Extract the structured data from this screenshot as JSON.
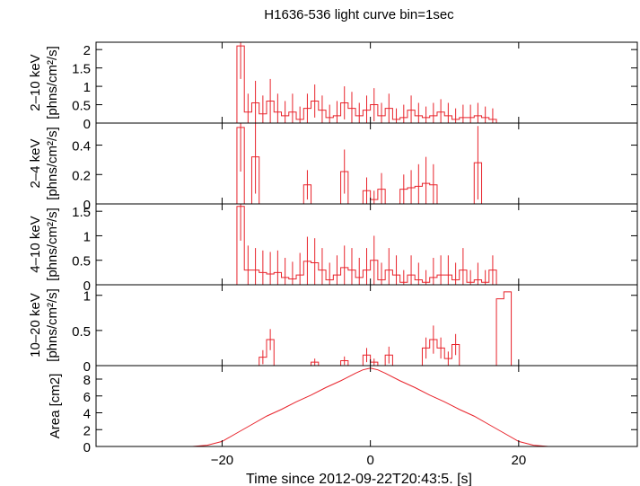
{
  "title": "H1636-536 light curve bin=1sec",
  "xlabel": "Time since 2012-09-22T20:43:5. [s]",
  "colors": {
    "data": "#e8232b",
    "axis": "#000000",
    "background": "#ffffff"
  },
  "chart_data": [
    {
      "type": "line",
      "ylabel_lines": [
        "2–10 keV",
        "[phns/cm²/s]"
      ],
      "xlim": [
        -37,
        36
      ],
      "ylim": [
        0,
        2.2
      ],
      "yticks": [
        0,
        0.5,
        1,
        1.5,
        2
      ],
      "ytick_labels": [
        "0",
        "0.5",
        "1",
        "1.5",
        "2"
      ],
      "x": [
        -18,
        -17,
        -16,
        -15,
        -14,
        -13,
        -12,
        -11,
        -10,
        -9,
        -8,
        -7,
        -6,
        -5,
        -4,
        -3,
        -2,
        -1,
        0,
        1,
        2,
        3,
        4,
        5,
        6,
        7,
        8,
        9,
        10,
        11,
        12,
        13,
        14,
        15,
        16
      ],
      "y": [
        2.1,
        0.3,
        0.55,
        0.25,
        0.6,
        0.3,
        0.2,
        0.3,
        0.1,
        0.4,
        0.6,
        0.35,
        0.15,
        0.2,
        0.55,
        0.4,
        0.2,
        0.35,
        0.5,
        0.2,
        0.4,
        0.1,
        0.15,
        0.35,
        0.2,
        0.15,
        0.2,
        0.3,
        0.2,
        0.1,
        0.15,
        0.15,
        0.2,
        0.15,
        0.1
      ],
      "err": [
        0.9,
        0.5,
        0.6,
        0.5,
        0.6,
        0.5,
        0.4,
        0.5,
        0.35,
        0.4,
        0.45,
        0.4,
        0.35,
        0.4,
        0.45,
        0.45,
        0.35,
        0.4,
        0.45,
        0.35,
        0.4,
        0.3,
        0.35,
        0.4,
        0.35,
        0.3,
        0.35,
        0.35,
        0.35,
        0.3,
        0.35,
        0.35,
        0.35,
        0.3,
        0.3
      ]
    },
    {
      "type": "line",
      "ylabel_lines": [
        "2–4 keV",
        "[phns/cm²/s]"
      ],
      "xlim": [
        -37,
        36
      ],
      "ylim": [
        0,
        0.55
      ],
      "yticks": [
        0,
        0.2,
        0.4
      ],
      "ytick_labels": [
        "0",
        "0.2",
        "0.4"
      ],
      "x": [
        -18,
        -17,
        -16,
        -15,
        -9,
        -4,
        -1,
        0,
        1,
        4,
        5,
        6,
        7,
        8,
        14
      ],
      "y": [
        0.52,
        0.0,
        0.32,
        0.0,
        0.13,
        0.22,
        0.09,
        0.03,
        0.1,
        0.1,
        0.11,
        0.12,
        0.14,
        0.13,
        0.28
      ],
      "err": [
        0.3,
        0.0,
        0.25,
        0.0,
        0.1,
        0.15,
        0.09,
        0.06,
        0.11,
        0.1,
        0.12,
        0.15,
        0.18,
        0.14,
        0.25
      ]
    },
    {
      "type": "line",
      "ylabel_lines": [
        "4–10 keV",
        "[phns/cm²/s]"
      ],
      "xlim": [
        -37,
        36
      ],
      "ylim": [
        0,
        1.65
      ],
      "yticks": [
        0,
        0.5,
        1,
        1.5
      ],
      "ytick_labels": [
        "0",
        "0.5",
        "1",
        "1.5"
      ],
      "x": [
        -18,
        -17,
        -16,
        -15,
        -14,
        -13,
        -12,
        -11,
        -10,
        -9,
        -8,
        -7,
        -6,
        -5,
        -4,
        -3,
        -2,
        -1,
        0,
        1,
        2,
        3,
        4,
        5,
        6,
        7,
        8,
        9,
        10,
        11,
        12,
        13,
        14,
        15,
        16
      ],
      "y": [
        1.6,
        0.3,
        0.3,
        0.25,
        0.22,
        0.25,
        0.15,
        0.12,
        0.2,
        0.48,
        0.45,
        0.3,
        0.1,
        0.2,
        0.35,
        0.3,
        0.15,
        0.3,
        0.5,
        0.1,
        0.3,
        0.2,
        0.05,
        0.2,
        0.1,
        0.05,
        0.15,
        0.2,
        0.2,
        0.1,
        0.3,
        0.05,
        0.1,
        0.05,
        0.3
      ],
      "err": [
        0.7,
        0.5,
        0.45,
        0.45,
        0.45,
        0.45,
        0.4,
        0.35,
        0.45,
        0.5,
        0.5,
        0.45,
        0.35,
        0.4,
        0.45,
        0.45,
        0.4,
        0.45,
        0.5,
        0.35,
        0.45,
        0.4,
        0.25,
        0.4,
        0.35,
        0.25,
        0.4,
        0.4,
        0.4,
        0.35,
        0.45,
        0.25,
        0.35,
        0.25,
        0.3
      ]
    },
    {
      "type": "line",
      "ylabel_lines": [
        "10–20 keV",
        "[phns/cm²/s]"
      ],
      "xlim": [
        -37,
        36
      ],
      "ylim": [
        0,
        1.15
      ],
      "yticks": [
        0,
        0.5,
        1
      ],
      "ytick_labels": [
        "0",
        "0.5",
        "1"
      ],
      "x": [
        -15,
        -14,
        -8,
        -7,
        -4,
        -3,
        -1,
        0,
        2,
        3,
        7,
        8,
        9,
        10,
        11,
        17,
        18
      ],
      "y": [
        0.12,
        0.37,
        0.05,
        0.0,
        0.07,
        0.0,
        0.15,
        0.05,
        0.15,
        0.0,
        0.25,
        0.37,
        0.25,
        0.1,
        0.3,
        0.95,
        1.05
      ],
      "err": [
        0.1,
        0.15,
        0.05,
        0.0,
        0.06,
        0.0,
        0.1,
        0.05,
        0.12,
        0.0,
        0.15,
        0.2,
        0.15,
        0.1,
        0.15,
        0.0,
        0.0
      ]
    },
    {
      "type": "line",
      "ylabel_lines": [
        "Area [cm2]"
      ],
      "xlim": [
        -37,
        36
      ],
      "ylim": [
        0,
        9.6
      ],
      "yticks": [
        0,
        2,
        4,
        6,
        8
      ],
      "ytick_labels": [
        "0",
        "2",
        "4",
        "6",
        "8"
      ],
      "xticks": [
        -20,
        0,
        20
      ],
      "xtick_labels": [
        "−20",
        "0",
        "20"
      ],
      "x": [
        -37,
        -24,
        -22,
        -20,
        -18,
        -16,
        -14,
        -12,
        -10,
        -8,
        -6,
        -4,
        -2,
        -1,
        0,
        1,
        2,
        4,
        6,
        8,
        10,
        12,
        14,
        16,
        18,
        20,
        22,
        24,
        36
      ],
      "y": [
        0,
        0,
        0.15,
        0.6,
        1.6,
        2.6,
        3.6,
        4.4,
        5.3,
        6.1,
        7.0,
        7.8,
        8.7,
        9.1,
        9.3,
        9.1,
        8.7,
        7.8,
        7.0,
        6.1,
        5.3,
        4.4,
        3.6,
        2.6,
        1.6,
        0.6,
        0.15,
        0,
        0
      ]
    }
  ]
}
